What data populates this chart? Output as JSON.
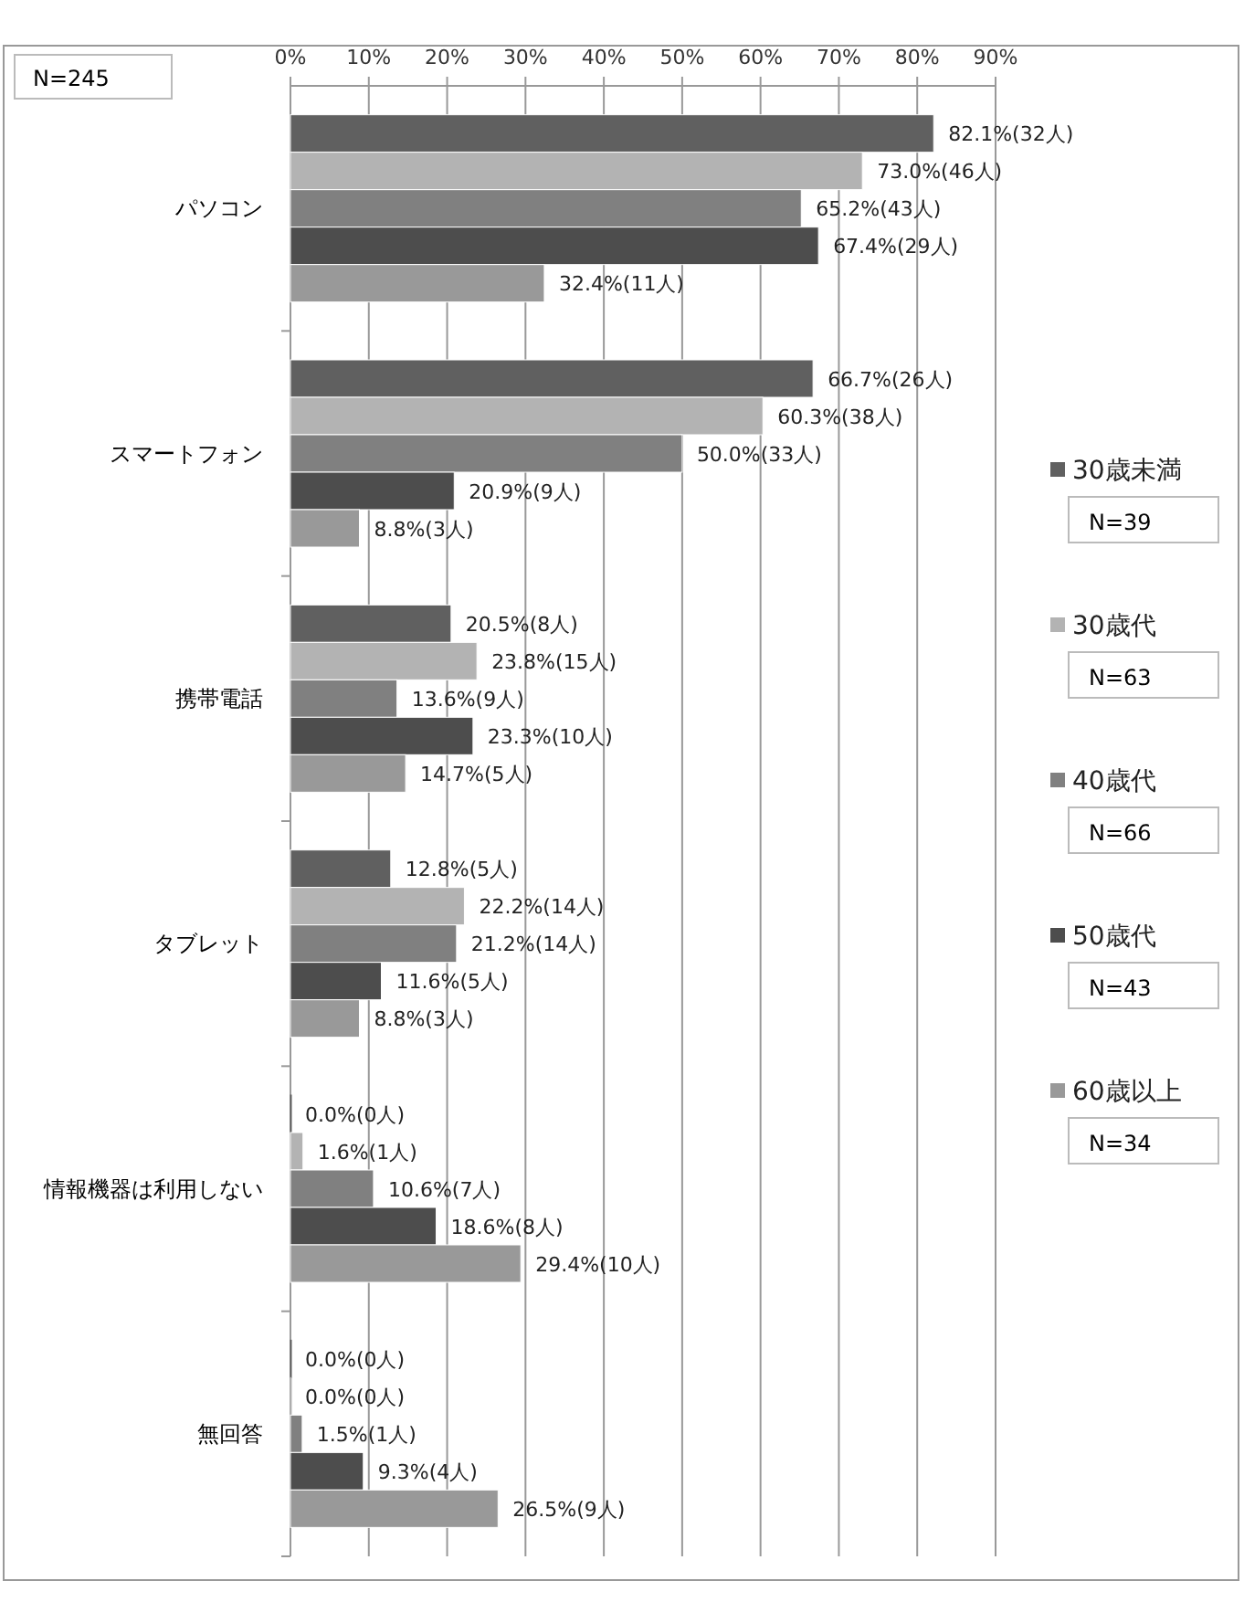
{
  "chart_data": {
    "type": "bar",
    "orientation": "horizontal",
    "categories": [
      "パソコン",
      "スマートフォン",
      "携帯電話",
      "タブレット",
      "情報機器は利用しない",
      "無回答"
    ],
    "series": [
      {
        "name": "30歳未満",
        "color": "#606060",
        "values": [
          82.1,
          66.7,
          20.5,
          12.8,
          0.0,
          0.0
        ],
        "value_labels": [
          "82.1%(32人)",
          "66.7%(26人)",
          "20.5%(8人)",
          "12.8%(5人)",
          "0.0%(0人)",
          "0.0%(0人)"
        ]
      },
      {
        "name": "30歳代",
        "color": "#b3b3b3",
        "values": [
          73.0,
          60.3,
          23.8,
          22.2,
          1.6,
          0.0
        ],
        "value_labels": [
          "73.0%(46人)",
          "60.3%(38人)",
          "23.8%(15人)",
          "22.2%(14人)",
          "1.6%(1人)",
          "0.0%(0人)"
        ]
      },
      {
        "name": "40歳代",
        "color": "#808080",
        "values": [
          65.2,
          50.0,
          13.6,
          21.2,
          10.6,
          1.5
        ],
        "value_labels": [
          "65.2%(43人)",
          "50.0%(33人)",
          "13.6%(9人)",
          "21.2%(14人)",
          "10.6%(7人)",
          "1.5%(1人)"
        ]
      },
      {
        "name": "50歳代",
        "color": "#4d4d4d",
        "values": [
          67.4,
          20.9,
          23.3,
          11.6,
          18.6,
          9.3
        ],
        "value_labels": [
          "67.4%(29人)",
          "20.9%(9人)",
          "23.3%(10人)",
          "11.6%(5人)",
          "18.6%(8人)",
          "9.3%(4人)"
        ]
      },
      {
        "name": "60歳以上",
        "color": "#999999",
        "values": [
          32.4,
          8.8,
          14.7,
          8.8,
          29.4,
          26.5
        ],
        "value_labels": [
          "32.4%(11人)",
          "8.8%(3人)",
          "14.7%(5人)",
          "8.8%(3人)",
          "29.4%(10人)",
          "26.5%(9人)"
        ]
      }
    ],
    "xlim": [
      0,
      90
    ],
    "xticks": [
      {
        "value": 0,
        "label": "0%"
      },
      {
        "value": 10,
        "label": "10%"
      },
      {
        "value": 20,
        "label": "20%"
      },
      {
        "value": 30,
        "label": "30%"
      },
      {
        "value": 40,
        "label": "40%"
      },
      {
        "value": 50,
        "label": "50%"
      },
      {
        "value": 60,
        "label": "60%"
      },
      {
        "value": 70,
        "label": "70%"
      },
      {
        "value": 80,
        "label": "80%"
      },
      {
        "value": 90,
        "label": "90%"
      }
    ],
    "grid": "x",
    "legend": "right",
    "annotations": [
      "N=245",
      "N=39",
      "N=63",
      "N=66",
      "N=43",
      "N=34"
    ]
  }
}
